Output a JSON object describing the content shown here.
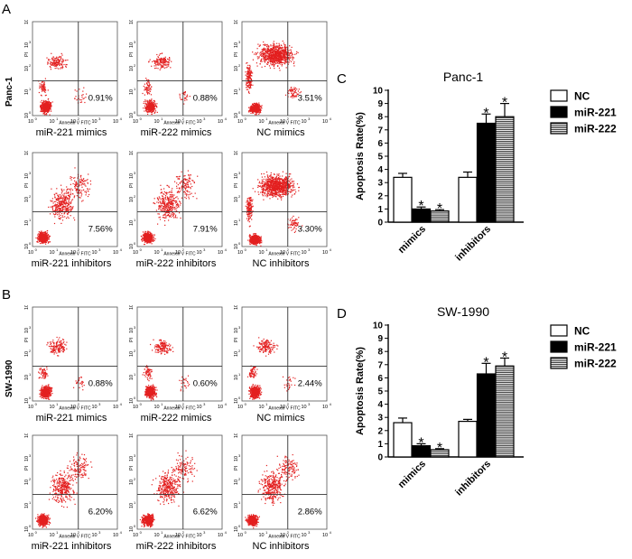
{
  "panels": {
    "A": {
      "label": "A",
      "cell_line": "Panc-1",
      "plots": [
        {
          "caption": "miR-221 mimics",
          "percent": "0.91%",
          "density": "sparse"
        },
        {
          "caption": "miR-222 mimics",
          "percent": "0.88%",
          "density": "sparse"
        },
        {
          "caption": "NC mimics",
          "percent": "3.51%",
          "density": "dense"
        },
        {
          "caption": "miR-221 inhibitors",
          "percent": "7.56%",
          "density": "spread"
        },
        {
          "caption": "miR-222 inhibitors",
          "percent": "7.91%",
          "density": "spread"
        },
        {
          "caption": "NC inhibitors",
          "percent": "3.30%",
          "density": "dense"
        }
      ]
    },
    "B": {
      "label": "B",
      "cell_line": "SW-1990",
      "plots": [
        {
          "caption": "miR-221 mimics",
          "percent": "0.88%",
          "density": "sparse"
        },
        {
          "caption": "miR-222 mimics",
          "percent": "0.60%",
          "density": "sparse"
        },
        {
          "caption": "NC mimics",
          "percent": "2.44%",
          "density": "sparse"
        },
        {
          "caption": "miR-221 inhibitors",
          "percent": "6.20%",
          "density": "spread"
        },
        {
          "caption": "miR-222 inhibitors",
          "percent": "6.62%",
          "density": "spread"
        },
        {
          "caption": "NC inhibitors",
          "percent": "2.86%",
          "density": "spread"
        }
      ]
    }
  },
  "flow_axes": {
    "x_label": "Annexin V FITC",
    "y_label": "PI",
    "tick_labels": [
      "10",
      "10",
      "10",
      "10",
      "10"
    ],
    "tick_exponents": [
      "0",
      "1",
      "2",
      "3",
      "4"
    ]
  },
  "chart_data": [
    {
      "panel_label": "C",
      "type": "bar",
      "title": "Panc-1",
      "ylabel": "Apoptosis Rate(%)",
      "xlabel": "",
      "ylim": [
        0,
        10
      ],
      "yticks": [
        0,
        1,
        2,
        3,
        4,
        5,
        6,
        7,
        8,
        9,
        10
      ],
      "categories": [
        "mimics",
        "inhibitors"
      ],
      "series": [
        {
          "name": "NC",
          "fill": "#ffffff",
          "pattern": "none",
          "values": [
            3.4,
            3.4
          ],
          "errors": [
            0.3,
            0.4
          ]
        },
        {
          "name": "miR-221",
          "fill": "#000000",
          "pattern": "none",
          "values": [
            1.0,
            7.5
          ],
          "errors": [
            0.15,
            0.7
          ]
        },
        {
          "name": "miR-222",
          "fill": "#ffffff",
          "pattern": "hstripes",
          "values": [
            0.85,
            8.0
          ],
          "errors": [
            0.1,
            1.0
          ]
        }
      ],
      "significance": [
        [
          false,
          false
        ],
        [
          true,
          true
        ],
        [
          true,
          true
        ]
      ],
      "sig_marker": "*"
    },
    {
      "panel_label": "D",
      "type": "bar",
      "title": "SW-1990",
      "ylabel": "Apoptosis Rate(%)",
      "xlabel": "",
      "ylim": [
        0,
        10
      ],
      "yticks": [
        0,
        1,
        2,
        3,
        4,
        5,
        6,
        7,
        8,
        9,
        10
      ],
      "categories": [
        "mimics",
        "inhibitors"
      ],
      "series": [
        {
          "name": "NC",
          "fill": "#ffffff",
          "pattern": "none",
          "values": [
            2.6,
            2.7
          ],
          "errors": [
            0.35,
            0.15
          ]
        },
        {
          "name": "miR-221",
          "fill": "#000000",
          "pattern": "none",
          "values": [
            0.85,
            6.3
          ],
          "errors": [
            0.15,
            0.8
          ]
        },
        {
          "name": "miR-222",
          "fill": "#ffffff",
          "pattern": "hstripes",
          "values": [
            0.55,
            6.9
          ],
          "errors": [
            0.08,
            0.6
          ]
        }
      ],
      "significance": [
        [
          false,
          false
        ],
        [
          true,
          true
        ],
        [
          true,
          true
        ]
      ],
      "sig_marker": "*"
    }
  ]
}
